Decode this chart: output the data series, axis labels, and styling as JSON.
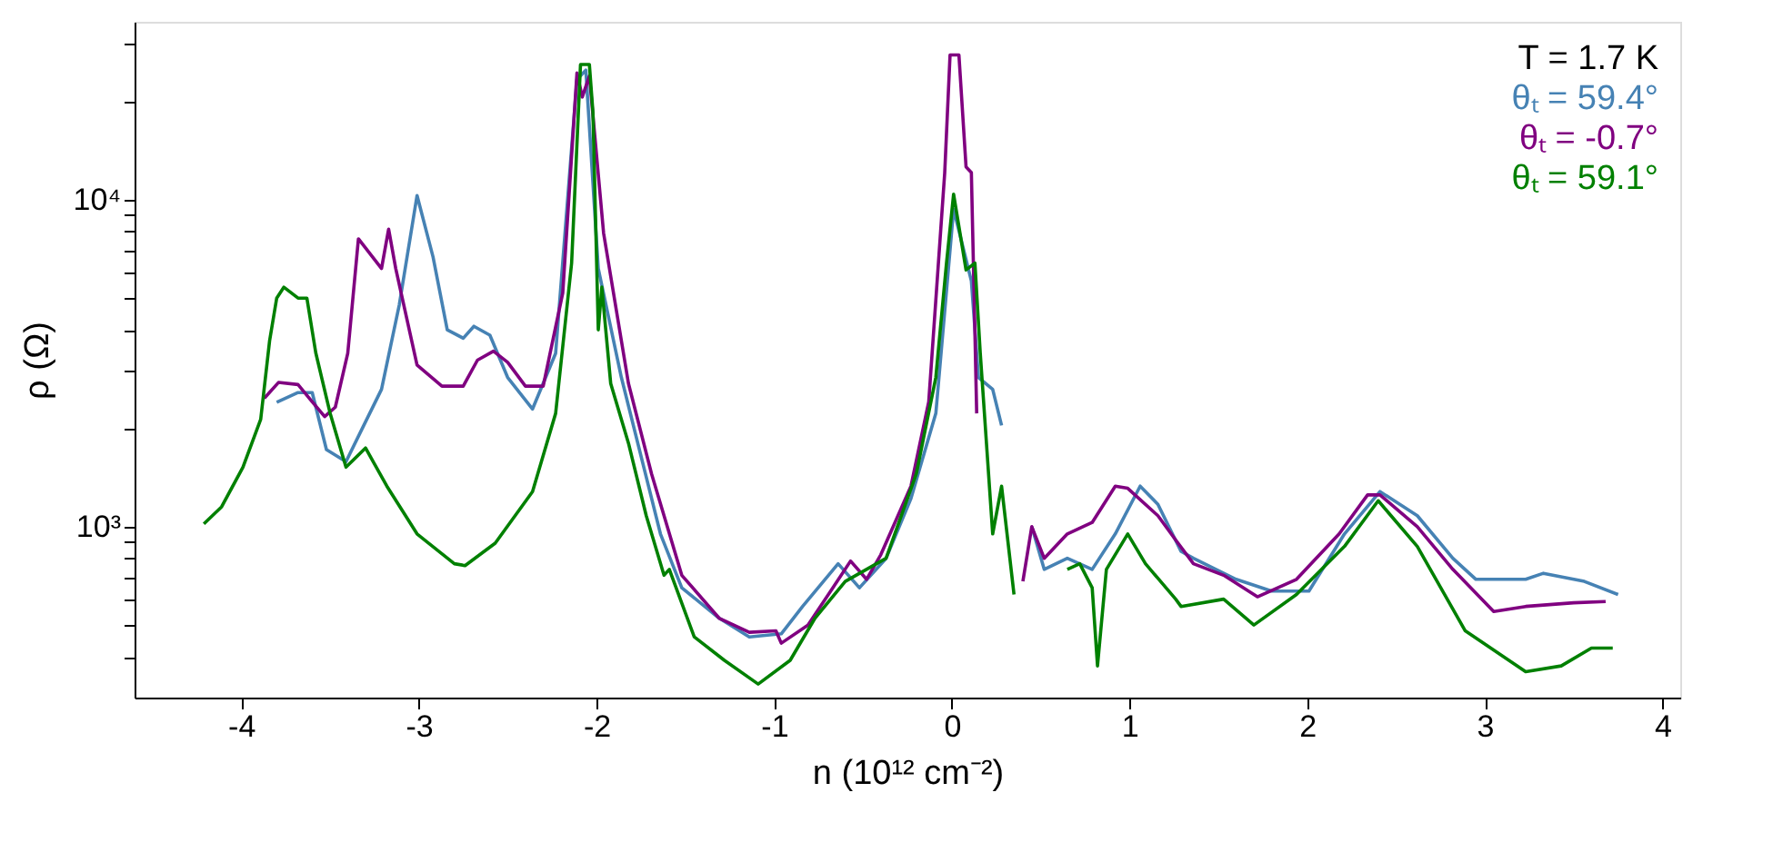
{
  "chart_data": {
    "type": "line",
    "xlabel": "n (10¹² cm⁻²)",
    "ylabel": "ρ (Ω)",
    "xlim": [
      -4.6,
      4.1
    ],
    "xticks": [
      -4,
      -3,
      -2,
      -1,
      0,
      1,
      2,
      3,
      4
    ],
    "ylim": [
      300,
      35000
    ],
    "log": "y",
    "yticks": [
      {
        "value": 400,
        "label": null
      },
      {
        "value": 500,
        "label": null
      },
      {
        "value": 600,
        "label": null
      },
      {
        "value": 700,
        "label": null
      },
      {
        "value": 800,
        "label": null
      },
      {
        "value": 900,
        "label": null
      },
      {
        "value": 1000,
        "label": "10³"
      },
      {
        "value": 2000,
        "label": null
      },
      {
        "value": 3000,
        "label": null
      },
      {
        "value": 4000,
        "label": null
      },
      {
        "value": 5000,
        "label": null
      },
      {
        "value": 6000,
        "label": null
      },
      {
        "value": 7000,
        "label": null
      },
      {
        "value": 8000,
        "label": null
      },
      {
        "value": 9000,
        "label": null
      },
      {
        "value": 10000,
        "label": "10⁴"
      },
      {
        "value": 20000,
        "label": null
      },
      {
        "value": 30000,
        "label": null
      }
    ],
    "grid": false,
    "legend": "top right",
    "marker": "none",
    "line_style": "solid",
    "annotations": [
      "T = 1.7 K"
    ],
    "series": [
      {
        "name": "θₜ = 59.4°",
        "color": "#4682b4",
        "x": [
          -3.8,
          -3.68,
          -3.6,
          -3.52,
          -3.41,
          -3.31,
          -3.21,
          -3.11,
          -3.01,
          -2.92,
          -2.84,
          -2.75,
          -2.69,
          -2.6,
          -2.5,
          -2.36,
          -2.23,
          -2.11,
          -2.06,
          -1.99,
          -1.86,
          -1.64,
          -1.52,
          -1.31,
          -1.14,
          -0.96,
          -0.84,
          -0.64,
          -0.52,
          -0.37,
          -0.23,
          -0.09,
          0.01,
          0.11,
          0.15,
          0.23,
          0.28,
          0.35,
          0.45,
          0.52,
          0.65,
          0.79,
          0.92,
          1.06,
          1.16,
          1.29,
          1.36,
          1.6,
          1.8,
          2.01,
          2.21,
          2.41,
          2.62,
          2.82,
          2.95,
          3.23,
          3.33,
          3.56,
          3.75
        ],
        "values": [
          2400,
          2570,
          2570,
          1720,
          1580,
          2040,
          2630,
          4770,
          10300,
          6680,
          4000,
          3770,
          4100,
          3850,
          2860,
          2290,
          3390,
          23300,
          24900,
          6160,
          2860,
          950,
          650,
          525,
          460,
          470,
          570,
          770,
          650,
          800,
          1220,
          2220,
          9350,
          5640,
          2860,
          2630,
          2040,
          null,
          1000,
          740,
          800,
          740,
          950,
          1330,
          1170,
          840,
          800,
          690,
          635,
          635,
          950,
          1280,
          1080,
          800,
          690,
          690,
          720,
          680,
          620
        ]
      },
      {
        "name": "θₜ = -0.7°",
        "color": "#800080",
        "x": [
          -3.87,
          -3.79,
          -3.68,
          -3.6,
          -3.53,
          -3.47,
          -3.4,
          -3.34,
          -3.21,
          -3.17,
          -3.13,
          -3.01,
          -2.87,
          -2.75,
          -2.67,
          -2.58,
          -2.5,
          -2.4,
          -2.3,
          -2.19,
          -2.11,
          -2.08,
          -2.04,
          -1.96,
          -1.82,
          -1.69,
          -1.52,
          -1.31,
          -1.14,
          -0.99,
          -0.96,
          -0.81,
          -0.67,
          -0.57,
          -0.48,
          -0.4,
          -0.23,
          -0.13,
          -0.04,
          -0.01,
          0.04,
          0.08,
          0.11,
          0.14,
          0.25,
          0.4,
          0.45,
          0.52,
          0.65,
          0.79,
          0.92,
          0.99,
          1.16,
          1.26,
          1.36,
          1.53,
          1.72,
          1.94,
          2.18,
          2.34,
          2.41,
          2.62,
          2.82,
          3.05,
          3.23,
          3.5,
          3.68
        ],
        "values": [
          2470,
          2760,
          2720,
          2410,
          2170,
          2320,
          3390,
          7590,
          6160,
          8130,
          6160,
          3120,
          2690,
          2690,
          3230,
          3440,
          3180,
          2690,
          2690,
          5180,
          24400,
          20600,
          23900,
          7900,
          2740,
          1450,
          710,
          525,
          475,
          480,
          440,
          500,
          650,
          785,
          690,
          820,
          1330,
          2410,
          12100,
          27700,
          27700,
          12600,
          12100,
          2220,
          null,
          680,
          1000,
          800,
          950,
          1030,
          1330,
          1310,
          1080,
          910,
          770,
          710,
          610,
          690,
          950,
          1250,
          1250,
          1000,
          740,
          550,
          570,
          585,
          590
        ]
      },
      {
        "name": "θₜ = 59.1°",
        "color": "#008000",
        "x": [
          -4.21,
          -4.11,
          -3.99,
          -3.89,
          -3.84,
          -3.8,
          -3.76,
          -3.68,
          -3.63,
          -3.58,
          -3.5,
          -3.41,
          -3.3,
          -3.18,
          -3.01,
          -2.8,
          -2.74,
          -2.57,
          -2.36,
          -2.23,
          -2.14,
          -2.09,
          -2.04,
          -2.02,
          -1.99,
          -1.97,
          -1.92,
          -1.82,
          -1.72,
          -1.62,
          -1.59,
          -1.45,
          -1.28,
          -1.09,
          -0.91,
          -0.77,
          -0.6,
          -0.37,
          -0.2,
          -0.09,
          -0.03,
          0.01,
          0.08,
          0.13,
          0.16,
          0.23,
          0.28,
          0.35,
          0.5,
          0.65,
          0.72,
          0.79,
          0.82,
          0.87,
          0.99,
          1.09,
          1.26,
          1.29,
          1.53,
          1.7,
          1.94,
          2.21,
          2.4,
          2.62,
          2.89,
          3.23,
          3.43,
          3.6,
          3.72
        ],
        "values": [
          1020,
          1150,
          1520,
          2130,
          3700,
          5000,
          5400,
          5000,
          5000,
          3400,
          2230,
          1520,
          1740,
          1330,
          950,
          770,
          760,
          890,
          1280,
          2220,
          6400,
          25900,
          25900,
          18500,
          4000,
          5400,
          2740,
          1800,
          1080,
          710,
          740,
          460,
          390,
          330,
          390,
          525,
          680,
          800,
          1450,
          2860,
          6400,
          10400,
          6100,
          6400,
          3400,
          950,
          1330,
          620,
          null,
          740,
          770,
          650,
          375,
          740,
          950,
          770,
          600,
          570,
          600,
          500,
          620,
          870,
          1200,
          870,
          480,
          360,
          375,
          425,
          425
        ]
      }
    ]
  }
}
